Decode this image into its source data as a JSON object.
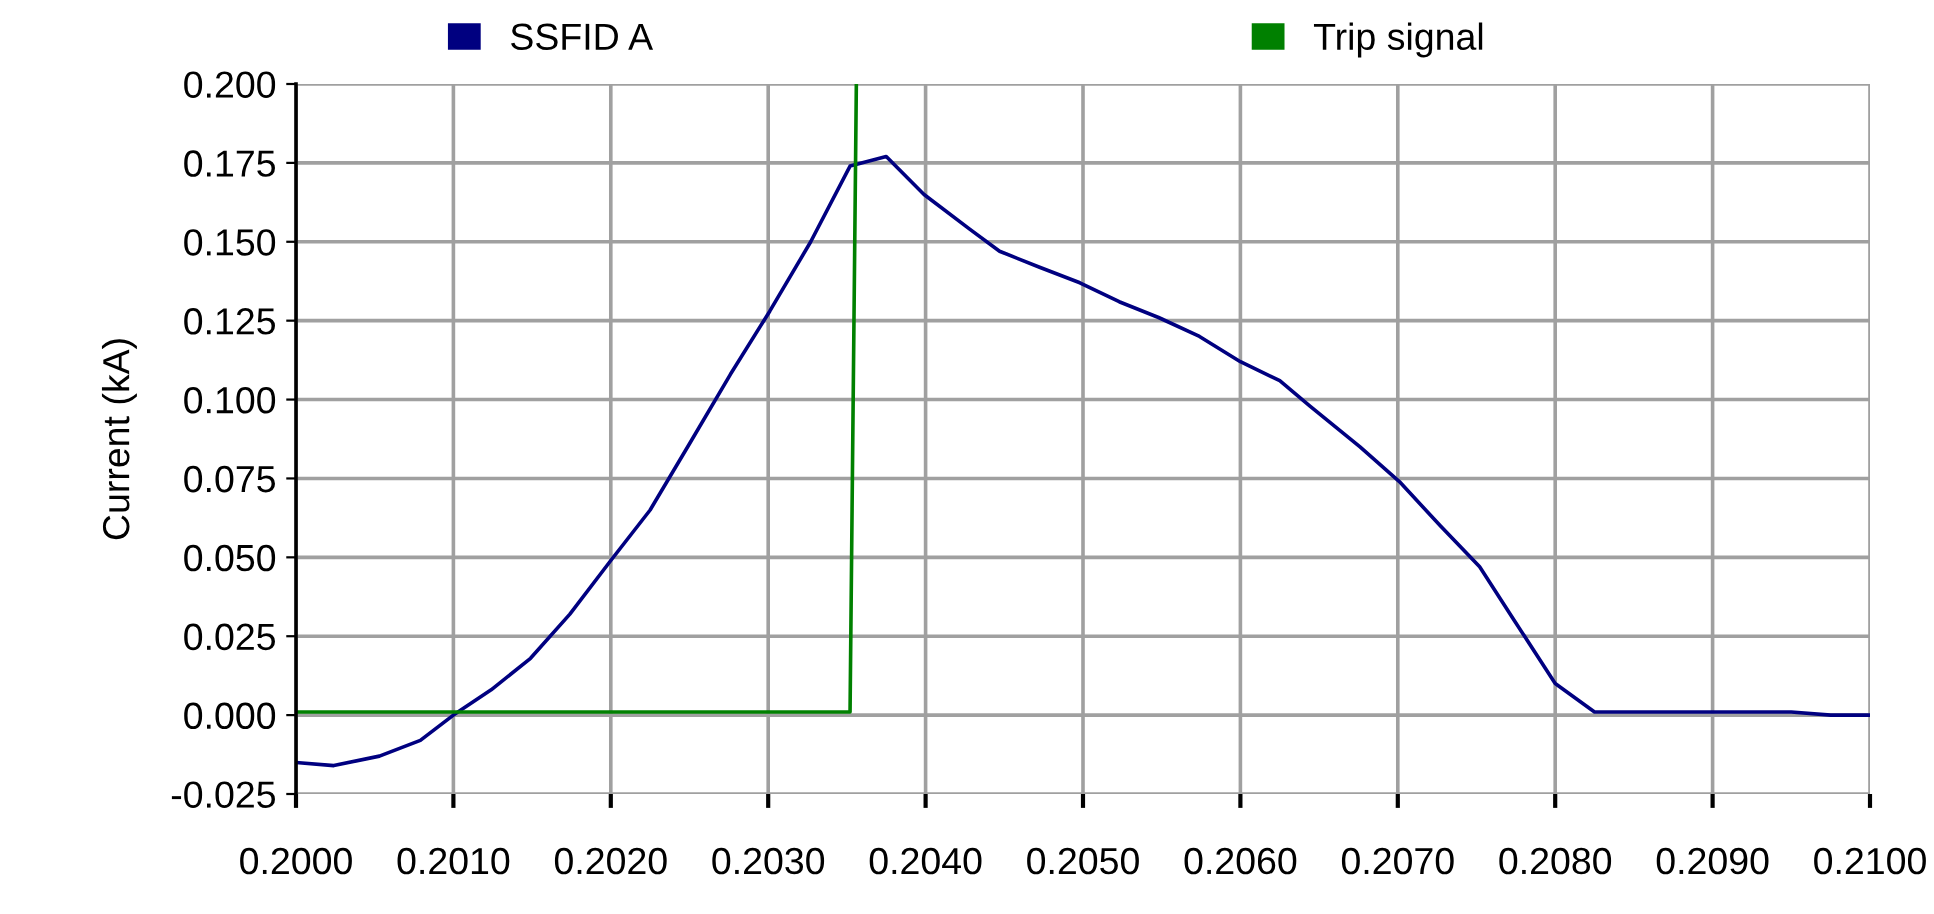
{
  "chart_data": {
    "type": "line",
    "ylabel": "Current (kA)",
    "xlim": [
      0.2,
      0.21
    ],
    "xticks": [
      {
        "value": 0.2,
        "label": "0.2000"
      },
      {
        "value": 0.201,
        "label": "0.2010"
      },
      {
        "value": 0.202,
        "label": "0.2020"
      },
      {
        "value": 0.203,
        "label": "0.2030"
      },
      {
        "value": 0.204,
        "label": "0.2040"
      },
      {
        "value": 0.205,
        "label": "0.2050"
      },
      {
        "value": 0.206,
        "label": "0.2060"
      },
      {
        "value": 0.207,
        "label": "0.2070"
      },
      {
        "value": 0.208,
        "label": "0.2080"
      },
      {
        "value": 0.209,
        "label": "0.2090"
      },
      {
        "value": 0.21,
        "label": "0.2100"
      }
    ],
    "ylim": [
      -0.025,
      0.2
    ],
    "yticks": [
      {
        "value": -0.025,
        "label": "-0.025"
      },
      {
        "value": 0.0,
        "label": "0.000"
      },
      {
        "value": 0.025,
        "label": "0.025"
      },
      {
        "value": 0.05,
        "label": "0.050"
      },
      {
        "value": 0.075,
        "label": "0.075"
      },
      {
        "value": 0.1,
        "label": "0.100"
      },
      {
        "value": 0.125,
        "label": "0.125"
      },
      {
        "value": 0.15,
        "label": "0.150"
      },
      {
        "value": 0.175,
        "label": "0.175"
      },
      {
        "value": 0.2,
        "label": "0.200"
      }
    ],
    "grid": true,
    "legend": "top",
    "marker": "none",
    "line_style": "solid",
    "series": [
      {
        "name": "SSFID A",
        "color": "#000080",
        "x": [
          0.2,
          0.20024,
          0.20053,
          0.20079,
          0.201,
          0.20124,
          0.20149,
          0.20174,
          0.202,
          0.20225,
          0.2025,
          0.20276,
          0.20301,
          0.20327,
          0.20352,
          0.20375,
          0.20399,
          0.20428,
          0.20447,
          0.20472,
          0.20498,
          0.20523,
          0.20548,
          0.20574,
          0.206,
          0.20625,
          0.20644,
          0.20676,
          0.20701,
          0.20727,
          0.20752,
          0.20774,
          0.208,
          0.20825,
          0.2095,
          0.20975,
          0.21
        ],
        "values": [
          -0.015,
          -0.016,
          -0.013,
          -0.008,
          0.0,
          0.008,
          0.018,
          0.032,
          0.049,
          0.065,
          0.086,
          0.108,
          0.128,
          0.15,
          0.174,
          0.177,
          0.165,
          0.154,
          0.147,
          0.142,
          0.137,
          0.131,
          0.126,
          0.12,
          0.112,
          0.106,
          0.098,
          0.085,
          0.074,
          0.06,
          0.047,
          0.03,
          0.01,
          0.001,
          0.001,
          0.0,
          0.0
        ]
      },
      {
        "name": "Trip signal",
        "color": "#008000",
        "x": [
          0.2,
          0.20352,
          0.20356
        ],
        "values": [
          0.001,
          0.001,
          0.2
        ]
      }
    ]
  }
}
